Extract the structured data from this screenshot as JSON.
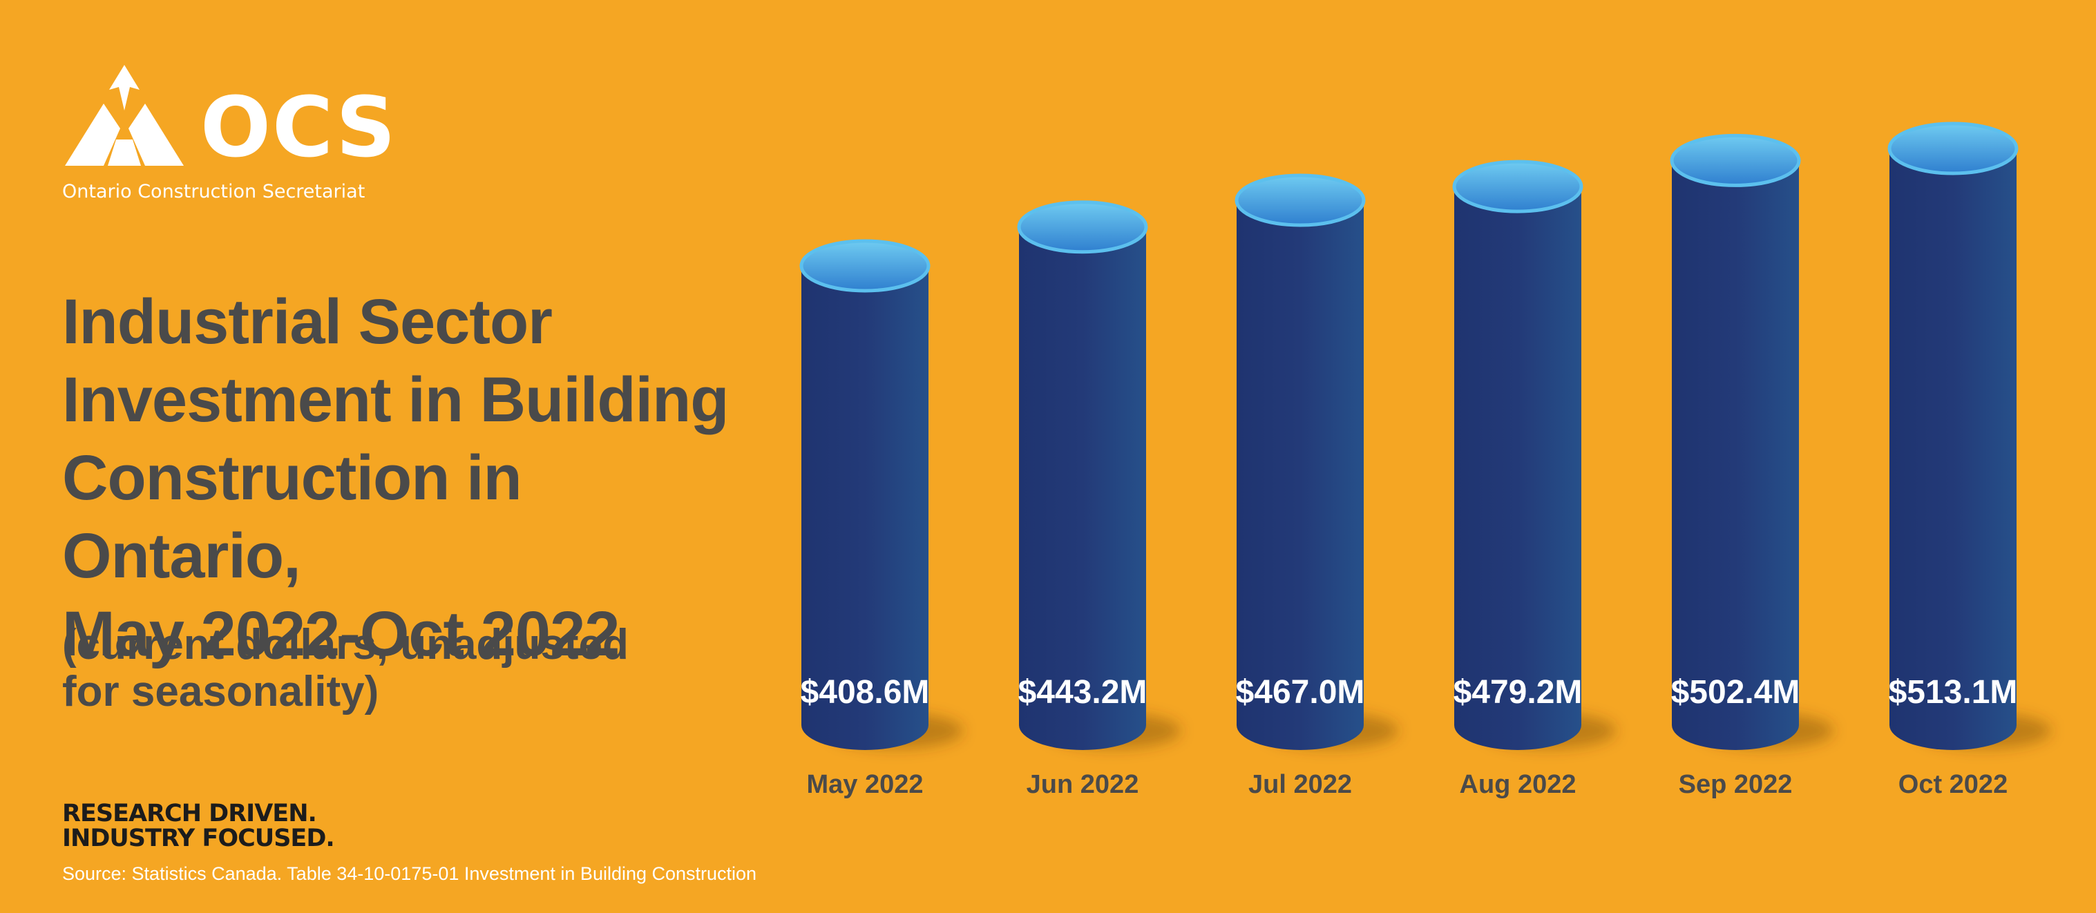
{
  "branding": {
    "logo_text": "OCS",
    "logo_subtitle": "Ontario Construction Secretariat",
    "tagline_line1": "RESEARCH DRIVEN.",
    "tagline_line2": "INDUSTRY FOCUSED."
  },
  "colors": {
    "background": "#f5a623",
    "cylinder_body": "#233a78",
    "cylinder_top": "#4fb3e6",
    "text_dark": "#4a4a4a",
    "text_light": "#ffffff"
  },
  "chart_data": {
    "type": "bar",
    "title_lines": [
      "Industrial Sector",
      "Investment in Building",
      "Construction in Ontario,",
      "May 2022-Oct 2022"
    ],
    "subtitle_lines": [
      "(current dollars, unadjusted",
      "for seasonality)"
    ],
    "categories": [
      "May 2022",
      "Jun 2022",
      "Jul 2022",
      "Aug 2022",
      "Sep 2022",
      "Oct 2022"
    ],
    "values": [
      408.6,
      443.2,
      467.0,
      479.2,
      502.4,
      513.1
    ],
    "value_labels": [
      "$408.6M",
      "$443.2M",
      "$467.0M",
      "$479.2M",
      "$502.4M",
      "$513.1M"
    ],
    "unit": "$M",
    "style": "3d-cylinder",
    "grid": false,
    "source": "Source:  Statistics Canada. Table 34-10-0175-01  Investment in Building Construction"
  }
}
